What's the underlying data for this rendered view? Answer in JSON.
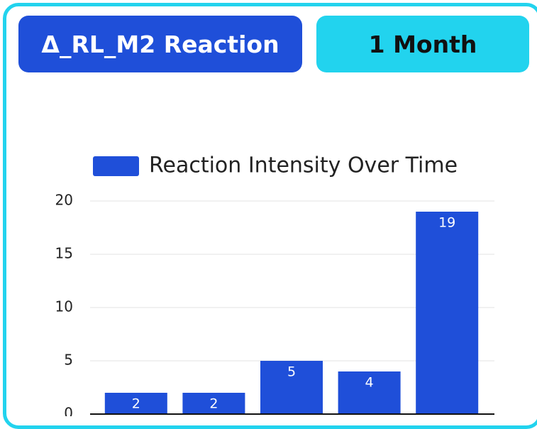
{
  "header": {
    "title": "Δ_RL_M2 Reaction",
    "period": "1 Month"
  },
  "chart_data": {
    "type": "bar",
    "legend": "Reaction Intensity Over Time",
    "categories": [
      null,
      null,
      null,
      null,
      null
    ],
    "values": [
      2,
      2,
      5,
      4,
      19
    ],
    "color": "#1f4fd9",
    "ylim": [
      0,
      20
    ],
    "yticks": [
      0,
      5,
      10,
      15,
      20
    ],
    "grid": true
  }
}
